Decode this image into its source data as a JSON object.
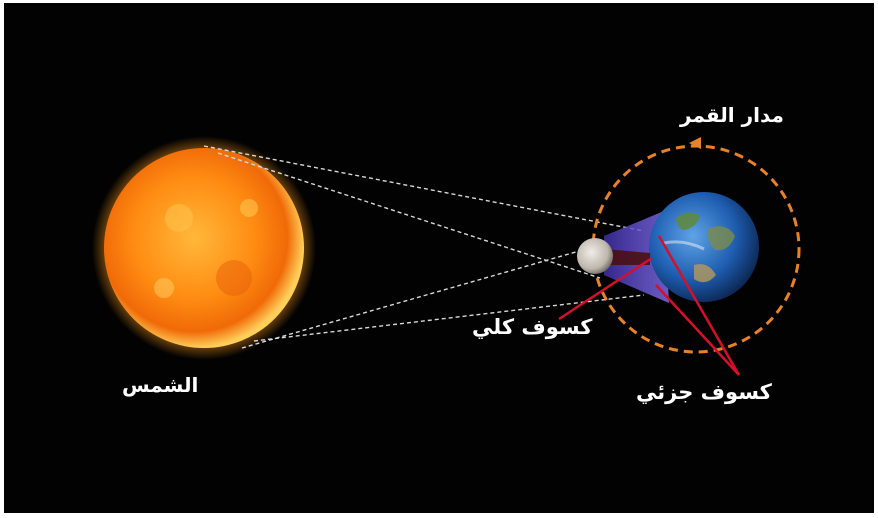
{
  "labels": {
    "sun": "الشمس",
    "moon_orbit": "مدار القمر",
    "total_eclipse": "كسوف كلي",
    "partial_eclipse": "كسوف جزئي"
  },
  "colors": {
    "background": "#020202",
    "sun_core": "#ff9a1a",
    "sun_edge": "#e85a00",
    "orbit": "#e8822a",
    "penumbra": "#6a4fd8",
    "umbra": "#5a1010",
    "pointer": "#d4102a",
    "earth": "#1e5db0",
    "moon": "#d9d5cc"
  }
}
